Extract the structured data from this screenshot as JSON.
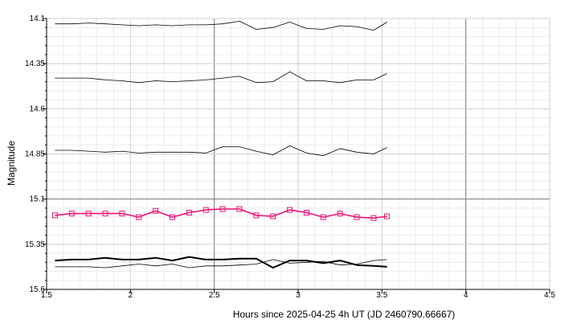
{
  "chart_data": {
    "type": "line",
    "xlabel": "Hours since 2025-04-25 4h UT (JD 2460790.66667)",
    "ylabel": "Magnitude",
    "xlim": [
      1.5,
      4.5
    ],
    "ylim": [
      15.6,
      14.1
    ],
    "y_inverted": true,
    "grid": true,
    "x_ticks": [
      "1.5",
      "2",
      "2.5",
      "3",
      "3.5",
      "4",
      "4.5"
    ],
    "y_ticks": [
      "14.1",
      "14.35",
      "14.6",
      "14.85",
      "15.1",
      "15.35",
      "15.6"
    ],
    "x": [
      1.55,
      1.65,
      1.75,
      1.85,
      1.95,
      2.05,
      2.15,
      2.25,
      2.35,
      2.45,
      2.55,
      2.65,
      2.75,
      2.85,
      2.95,
      3.05,
      3.15,
      3.25,
      3.35,
      3.45,
      3.53
    ],
    "series": [
      {
        "color": "#000000",
        "width": 0.8,
        "marker": "none",
        "values": [
          14.13,
          14.13,
          14.125,
          14.13,
          14.135,
          14.14,
          14.135,
          14.14,
          14.135,
          14.135,
          14.13,
          14.115,
          14.16,
          14.15,
          14.12,
          14.155,
          14.16,
          14.14,
          14.145,
          14.165,
          14.12
        ]
      },
      {
        "color": "#000000",
        "width": 0.8,
        "marker": "none",
        "values": [
          14.43,
          14.43,
          14.43,
          14.44,
          14.445,
          14.455,
          14.445,
          14.45,
          14.445,
          14.44,
          14.43,
          14.42,
          14.455,
          14.45,
          14.395,
          14.445,
          14.445,
          14.455,
          14.44,
          14.44,
          14.405
        ]
      },
      {
        "color": "#000000",
        "width": 0.8,
        "marker": "none",
        "values": [
          14.83,
          14.83,
          14.835,
          14.84,
          14.835,
          14.845,
          14.84,
          14.84,
          14.84,
          14.845,
          14.81,
          14.81,
          14.835,
          14.855,
          14.805,
          14.845,
          14.86,
          14.82,
          14.84,
          14.85,
          14.815
        ]
      },
      {
        "color": "#ee1177",
        "width": 1.6,
        "marker": "square",
        "values": [
          15.19,
          15.18,
          15.18,
          15.18,
          15.18,
          15.2,
          15.165,
          15.2,
          15.175,
          15.16,
          15.155,
          15.155,
          15.19,
          15.195,
          15.16,
          15.175,
          15.2,
          15.18,
          15.2,
          15.205,
          15.195
        ]
      },
      {
        "color": "#000000",
        "width": 2.0,
        "marker": "none",
        "values": [
          15.44,
          15.435,
          15.435,
          15.425,
          15.435,
          15.435,
          15.425,
          15.44,
          15.42,
          15.435,
          15.435,
          15.43,
          15.43,
          15.48,
          15.44,
          15.44,
          15.455,
          15.44,
          15.465,
          15.47,
          15.475
        ]
      },
      {
        "color": "#000000",
        "width": 0.8,
        "marker": "none",
        "values": [
          15.475,
          15.475,
          15.475,
          15.48,
          15.47,
          15.46,
          15.47,
          15.46,
          15.48,
          15.47,
          15.47,
          15.465,
          15.46,
          15.435,
          15.455,
          15.45,
          15.445,
          15.465,
          15.46,
          15.44,
          15.435
        ]
      }
    ]
  }
}
